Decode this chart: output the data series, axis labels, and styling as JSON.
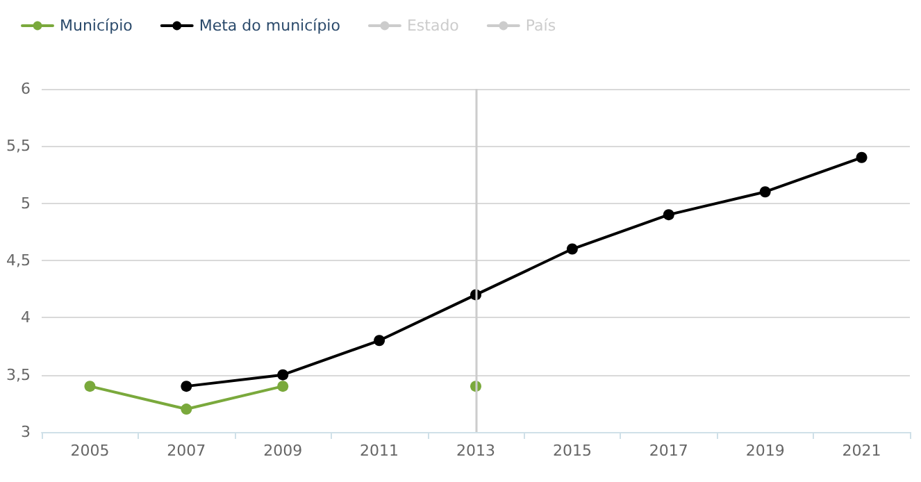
{
  "chart_data": {
    "type": "line",
    "categories": [
      "2005",
      "2007",
      "2009",
      "2011",
      "2013",
      "2015",
      "2017",
      "2019",
      "2021"
    ],
    "series": [
      {
        "name": "Município",
        "color": "#7aa93c",
        "values": [
          3.4,
          3.2,
          3.4,
          null,
          3.4,
          null,
          null,
          null,
          null
        ]
      },
      {
        "name": "Meta do município",
        "color": "#000000",
        "values": [
          null,
          3.4,
          3.5,
          3.8,
          4.2,
          4.6,
          4.9,
          5.1,
          5.4
        ]
      },
      {
        "name": "Estado",
        "color": "#cccccc",
        "values": [
          null,
          null,
          null,
          null,
          null,
          null,
          null,
          null,
          null
        ]
      },
      {
        "name": "País",
        "color": "#cccccc",
        "values": [
          null,
          null,
          null,
          null,
          null,
          null,
          null,
          null,
          null
        ]
      }
    ],
    "ylim": [
      3,
      6
    ],
    "yticks": [
      3,
      {
        "value": 3.5,
        "label": "3,5"
      },
      4,
      {
        "value": 4.5,
        "label": "4,5"
      },
      5,
      {
        "value": 5.5,
        "label": "5,5"
      },
      6
    ],
    "ref_lines": [
      {
        "axis": "x",
        "value": "2013",
        "color": "#cccccc"
      }
    ],
    "grid": "y",
    "legend": "top left",
    "marker": "circle",
    "line_style": "solid"
  }
}
